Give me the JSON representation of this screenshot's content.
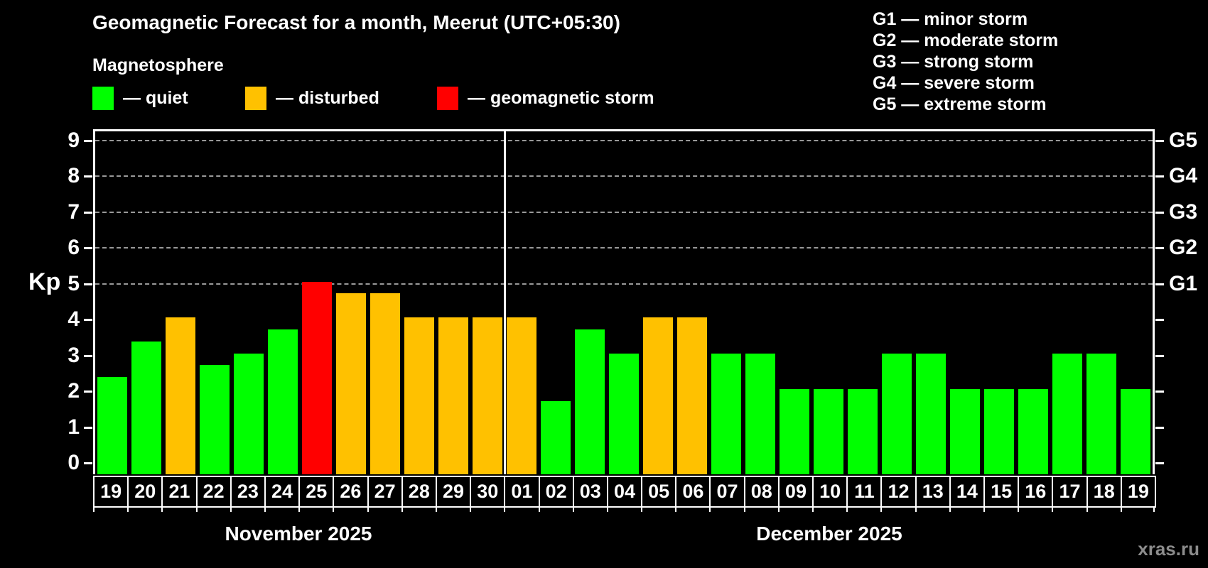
{
  "title": "Geomagnetic Forecast for a month, Meerut (UTC+05:30)",
  "magnetosphere_heading": "Magnetosphere",
  "legend": {
    "items": [
      {
        "label": "— quiet",
        "status": "quiet",
        "color": "#00ff00"
      },
      {
        "label": "— disturbed",
        "status": "disturbed",
        "color": "#ffc100"
      },
      {
        "label": "— geomagnetic storm",
        "status": "storm",
        "color": "#ff0000"
      }
    ]
  },
  "g_legend": [
    "G1 — minor storm",
    "G2 — moderate storm",
    "G3 — strong storm",
    "G4 — severe storm",
    "G5 — extreme storm"
  ],
  "watermark": "xras.ru",
  "chart_data": {
    "type": "bar",
    "title": "Geomagnetic Forecast for a month, Meerut (UTC+05:30)",
    "ylabel": "Kp",
    "ylim": [
      0,
      9.33
    ],
    "y_ticks": [
      0,
      1,
      2,
      3,
      4,
      5,
      6,
      7,
      8,
      9
    ],
    "gridlines_at": [
      5,
      6,
      7,
      8,
      9
    ],
    "grid": "dashed horizontal lines at storm levels G1-G5",
    "legend_position": "top",
    "background_color": "#000000",
    "gridline_color": "#999999",
    "right_axis": {
      "labels": [
        {
          "kp": 5,
          "label": "G1"
        },
        {
          "kp": 6,
          "label": "G2"
        },
        {
          "kp": 7,
          "label": "G3"
        },
        {
          "kp": 8,
          "label": "G4"
        },
        {
          "kp": 9,
          "label": "G5"
        }
      ]
    },
    "x_groups": [
      {
        "label": "November 2025",
        "days": 12
      },
      {
        "label": "December 2025",
        "days": 19
      }
    ],
    "categories": [
      "19",
      "20",
      "21",
      "22",
      "23",
      "24",
      "25",
      "26",
      "27",
      "28",
      "29",
      "30",
      "01",
      "02",
      "03",
      "04",
      "05",
      "06",
      "07",
      "08",
      "09",
      "10",
      "11",
      "12",
      "13",
      "14",
      "15",
      "16",
      "17",
      "18",
      "19"
    ],
    "values": [
      2.33,
      3.33,
      4,
      2.67,
      3,
      3.67,
      5,
      4.67,
      4.67,
      4,
      4,
      4,
      4,
      1.67,
      3.67,
      3,
      4,
      4,
      3,
      3,
      2,
      2,
      2,
      3,
      3,
      2,
      2,
      2,
      3,
      3,
      2
    ],
    "statuses": [
      "quiet",
      "quiet",
      "disturbed",
      "quiet",
      "quiet",
      "quiet",
      "storm",
      "disturbed",
      "disturbed",
      "disturbed",
      "disturbed",
      "disturbed",
      "disturbed",
      "quiet",
      "quiet",
      "quiet",
      "disturbed",
      "disturbed",
      "quiet",
      "quiet",
      "quiet",
      "quiet",
      "quiet",
      "quiet",
      "quiet",
      "quiet",
      "quiet",
      "quiet",
      "quiet",
      "quiet",
      "quiet"
    ],
    "status_colors": {
      "quiet": "#00ff00",
      "disturbed": "#ffc100",
      "storm": "#ff0000"
    }
  }
}
